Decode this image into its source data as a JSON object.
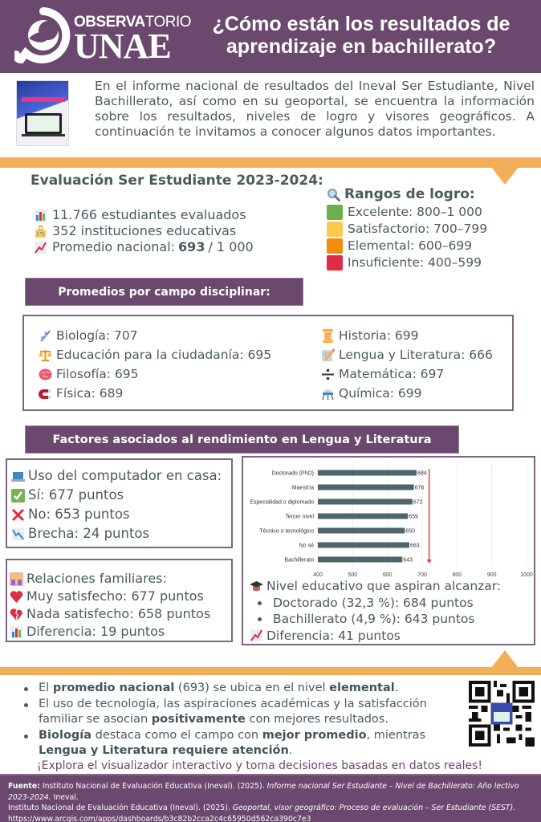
{
  "header": {
    "logo_top_bold": "OBSERVA",
    "logo_top_light": "TORIO",
    "logo_bottom": "UNAE",
    "title": "¿Cómo están los resultados de aprendizaje en bachillerato?"
  },
  "intro": {
    "thumbnail_icon": "report-cover-icon",
    "text": "En el informe nacional de resultados del Ineval Ser Estudiante, Nivel Bachillerato, así como en su geoportal, se encuentra la información sobre los resultados, niveles de logro y visores geográficos. A continuación te invitamos a conocer algunos datos importantes."
  },
  "evaluacion": {
    "title": "Evaluación Ser Estudiante 2023-2024:",
    "items": [
      {
        "icon": "bar-chart-icon",
        "text": "11.766 estudiantes evaluados"
      },
      {
        "icon": "school-icon",
        "text": "352 instituciones educativas"
      },
      {
        "icon": "trend-up-icon",
        "prefix": "Promedio nacional: ",
        "bold": "693",
        "suffix": " / 1 000"
      }
    ]
  },
  "rangos": {
    "title": "Rangos de logro:",
    "icon": "magnifier-icon",
    "items": [
      {
        "label": "Excelente: 800–1 000",
        "color": "#6ab04c"
      },
      {
        "label": "Satisfactorio: 700–799",
        "color": "#fdc84e"
      },
      {
        "label": "Elemental: 600–699",
        "color": "#f28c0f"
      },
      {
        "label": "Insuficiente: 400–599",
        "color": "#dd2c44"
      }
    ]
  },
  "campos": {
    "title": "Promedios por campo disciplinar:",
    "left": [
      {
        "icon": "dna-icon",
        "text": "Biología: 707"
      },
      {
        "icon": "scales-icon",
        "text": "Educación para la ciudadanía: 695"
      },
      {
        "icon": "brain-icon",
        "text": "Filosofía: 695"
      },
      {
        "icon": "magnet-icon",
        "text": "Física: 689"
      }
    ],
    "right": [
      {
        "icon": "scroll-icon",
        "text": "Historia: 699"
      },
      {
        "icon": "memo-pencil-icon",
        "text": "Lengua y Literatura: 666"
      },
      {
        "icon": "division-icon",
        "text": "Matemática: 697"
      },
      {
        "icon": "lab-icon",
        "text": "Química: 699"
      }
    ]
  },
  "factores": {
    "title": "Factores asociados al rendimiento en Lengua y Literatura",
    "computador": {
      "title": "Uso del computador en casa:",
      "items": [
        {
          "icon": "check-icon",
          "text": "Sí: 677 puntos"
        },
        {
          "icon": "cross-icon",
          "text": "No: 653 puntos"
        },
        {
          "icon": "trend-down-icon",
          "text": "Brecha: 24 puntos"
        }
      ]
    },
    "familia": {
      "title": "Relaciones familiares:",
      "items": [
        {
          "icon": "heart-icon",
          "text": "Muy satisfecho: 677 puntos"
        },
        {
          "icon": "broken-heart-icon",
          "text": "Nada satisfecho: 658 puntos"
        },
        {
          "icon": "bar-chart-icon",
          "text": "Diferencia: 19 puntos"
        }
      ]
    },
    "nivel": {
      "title": "Nivel educativo que aspiran alcanzar:",
      "bullets": [
        "Doctorado (32,3 %): 684 puntos",
        "Bachillerato (4,9 %): 643 puntos"
      ],
      "diff": "Diferencia: 41 puntos"
    }
  },
  "chart_data": {
    "type": "bar",
    "orientation": "horizontal",
    "title": "",
    "xlabel": "",
    "ylabel": "",
    "categories": [
      "Doctorado (PhD)",
      "Maestría",
      "Especialidad o diplomado",
      "Tercer nivel",
      "Técnico o tecnológico",
      "No sé",
      "Bachillerato"
    ],
    "values": [
      684,
      676,
      672,
      659,
      650,
      663,
      643
    ],
    "xlim": [
      400,
      1000
    ],
    "xticks": [
      400,
      500,
      600,
      700,
      800,
      900,
      1000
    ],
    "grid": true,
    "bar_color": "#4d666b",
    "annotation": "red downward arrow near 720 from top to bottom",
    "annotation_color": "#e8403a"
  },
  "conclusiones": {
    "items": [
      [
        {
          "t": "El "
        },
        {
          "b": "promedio nacional"
        },
        {
          "t": " (693) se ubica en el nivel "
        },
        {
          "b": "elemental"
        },
        {
          "t": "."
        }
      ],
      [
        {
          "t": "El uso de tecnología, las aspiraciones académicas y la satisfacción familiar se asocian "
        },
        {
          "b": "positivamente"
        },
        {
          "t": " con mejores resultados."
        }
      ],
      [
        {
          "b": "Biología"
        },
        {
          "t": " destaca como el campo con "
        },
        {
          "b": "mejor promedio"
        },
        {
          "t": ", mientras "
        },
        {
          "b": "Lengua y Literatura requiere atención"
        },
        {
          "t": "."
        }
      ]
    ],
    "cta": "¡Explora el visualizador interactivo y toma decisiones basadas en datos reales!",
    "qr_icon": "qr-code-icon"
  },
  "footer": {
    "label": "Fuente:",
    "ref1_plain": " Instituto Nacional de Evaluación Educativa (Ineval). (2025). ",
    "ref1_italic": "Informe nacional Ser Estudiante – Nivel de Bachillerato: Año lectivo 2023-2024.",
    "ref1_end": " Ineval.",
    "ref2_plain": "Instituto Nacional de Evaluación Educativa (Ineval). (2025). ",
    "ref2_italic": "Geoportal, visor geográfico: Proceso de evaluación – Ser Estudiante (SEST).",
    "url": "https://www.arcgis.com/apps/dashboards/b3c82b2cca2c4c65950d562ca390c7e3"
  }
}
